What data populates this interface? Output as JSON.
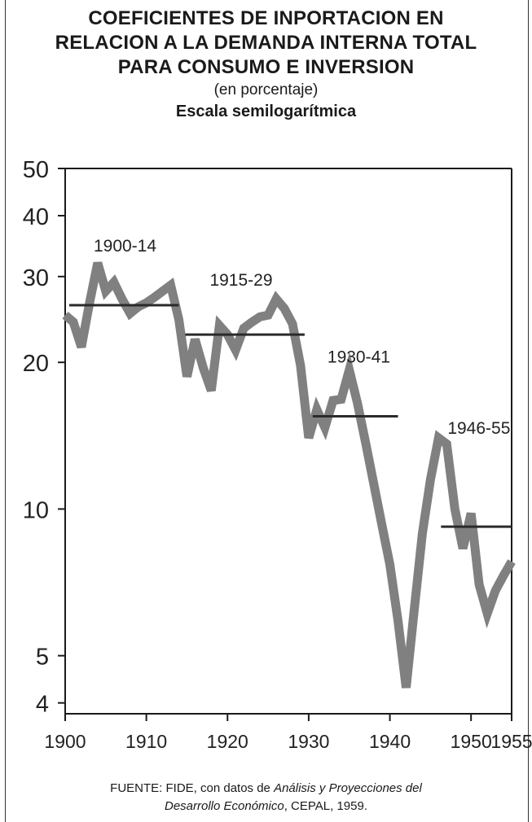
{
  "chart_data": {
    "type": "line",
    "title_lines": [
      "COEFICIENTES DE INPORTACION EN",
      "RELACION A LA DEMANDA INTERNA TOTAL",
      "PARA CONSUMO E INVERSION"
    ],
    "subtitle": "(en porcentaje)",
    "scale_note": "Escala semilogarítmica",
    "y_scale": "log",
    "ylim": [
      3.8,
      50
    ],
    "xlim": [
      1900,
      1955
    ],
    "y_ticks": [
      50,
      40,
      30,
      20,
      10,
      5,
      4
    ],
    "x_ticks": [
      1900,
      1910,
      1920,
      1930,
      1940,
      1950,
      1955
    ],
    "grid": false,
    "series": [
      {
        "values": [
          {
            "x": 1900,
            "y": 25.0
          },
          {
            "x": 1901,
            "y": 24.2
          },
          {
            "x": 1902,
            "y": 21.5
          },
          {
            "x": 1903,
            "y": 26.5
          },
          {
            "x": 1904,
            "y": 32.0
          },
          {
            "x": 1905,
            "y": 28.0
          },
          {
            "x": 1906,
            "y": 29.2
          },
          {
            "x": 1907,
            "y": 27.0
          },
          {
            "x": 1908,
            "y": 25.2
          },
          {
            "x": 1909,
            "y": 26.0
          },
          {
            "x": 1910,
            "y": 26.5
          },
          {
            "x": 1911,
            "y": 27.2
          },
          {
            "x": 1912,
            "y": 28.0
          },
          {
            "x": 1913,
            "y": 28.8
          },
          {
            "x": 1914,
            "y": 24.5
          },
          {
            "x": 1915,
            "y": 18.7
          },
          {
            "x": 1916,
            "y": 22.3
          },
          {
            "x": 1917,
            "y": 19.5
          },
          {
            "x": 1918,
            "y": 17.5
          },
          {
            "x": 1919,
            "y": 23.8
          },
          {
            "x": 1920,
            "y": 22.8
          },
          {
            "x": 1921,
            "y": 21.2
          },
          {
            "x": 1922,
            "y": 23.5
          },
          {
            "x": 1923,
            "y": 24.2
          },
          {
            "x": 1924,
            "y": 24.8
          },
          {
            "x": 1925,
            "y": 25.0
          },
          {
            "x": 1926,
            "y": 27.0
          },
          {
            "x": 1927,
            "y": 25.8
          },
          {
            "x": 1928,
            "y": 24.0
          },
          {
            "x": 1929,
            "y": 19.7
          },
          {
            "x": 1930,
            "y": 14.0
          },
          {
            "x": 1931,
            "y": 16.0
          },
          {
            "x": 1932,
            "y": 14.7
          },
          {
            "x": 1933,
            "y": 16.7
          },
          {
            "x": 1934,
            "y": 16.8
          },
          {
            "x": 1935,
            "y": 19.3
          },
          {
            "x": 1936,
            "y": 16.5
          },
          {
            "x": 1937,
            "y": 13.7
          },
          {
            "x": 1938,
            "y": 11.3
          },
          {
            "x": 1939,
            "y": 9.3
          },
          {
            "x": 1940,
            "y": 7.7
          },
          {
            "x": 1941,
            "y": 5.9
          },
          {
            "x": 1942,
            "y": 4.3
          },
          {
            "x": 1943,
            "y": 6.2
          },
          {
            "x": 1944,
            "y": 8.9
          },
          {
            "x": 1945,
            "y": 11.5
          },
          {
            "x": 1946,
            "y": 14.0
          },
          {
            "x": 1947,
            "y": 13.6
          },
          {
            "x": 1948,
            "y": 10.0
          },
          {
            "x": 1949,
            "y": 8.3
          },
          {
            "x": 1950,
            "y": 9.8
          },
          {
            "x": 1951,
            "y": 7.0
          },
          {
            "x": 1952,
            "y": 6.1
          },
          {
            "x": 1953,
            "y": 6.8
          },
          {
            "x": 1954,
            "y": 7.3
          },
          {
            "x": 1955,
            "y": 7.8
          }
        ],
        "color": "#808080"
      }
    ],
    "period_averages": [
      {
        "label": "1900-14",
        "start": 1900.5,
        "end": 1914,
        "value": 26.2
      },
      {
        "label": "1915-29",
        "start": 1914.8,
        "end": 1929.5,
        "value": 22.8
      },
      {
        "label": "1930-41",
        "start": 1930.5,
        "end": 1941,
        "value": 15.5
      },
      {
        "label": "1946-55",
        "start": 1946.3,
        "end": 1955,
        "value": 9.2
      }
    ],
    "colors": {
      "line": "#808080",
      "average": "#2a2a2a",
      "axis": "#1a1a1a"
    }
  },
  "source": {
    "prefix": "FUENTE: FIDE, con datos de ",
    "title_italic_1": "Análisis y Proyecciones del",
    "title_italic_2": "Desarrollo Económico",
    "suffix": ", CEPAL, 1959."
  }
}
